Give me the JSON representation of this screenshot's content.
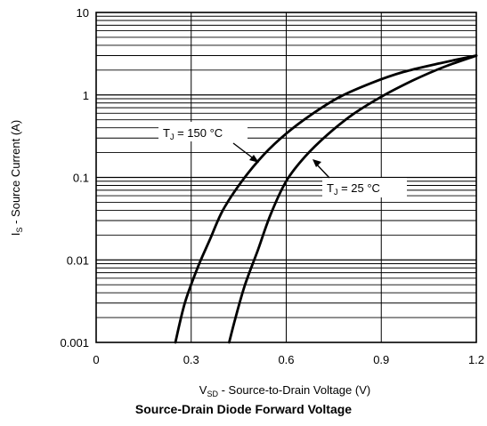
{
  "chart_data": {
    "type": "line",
    "title": "Source-Drain Diode Forward Voltage",
    "xlabel": {
      "main": "V",
      "sub": "SD",
      "rest": " - Source-to-Drain Voltage (V)"
    },
    "ylabel": {
      "main": "I",
      "sub": "S",
      "rest": " - Source Current (A)"
    },
    "x_ticks": [
      "0",
      "0.3",
      "0.6",
      "0.9",
      "1.2"
    ],
    "y_ticks": [
      "0.001",
      "0.01",
      "0.1",
      "1",
      "10"
    ],
    "xlim": [
      0,
      1.2
    ],
    "ylim": [
      0.001,
      10
    ],
    "y_scale": "log",
    "grid": true,
    "series": [
      {
        "name": {
          "main": "T",
          "sub": "J",
          "rest": " = 150 °C"
        },
        "x": [
          0.25,
          0.28,
          0.32,
          0.36,
          0.4,
          0.46,
          0.53,
          0.6,
          0.68,
          0.77,
          0.87,
          0.97,
          1.08,
          1.2
        ],
        "y": [
          0.001,
          0.003,
          0.008,
          0.018,
          0.04,
          0.09,
          0.19,
          0.34,
          0.58,
          0.95,
          1.4,
          1.9,
          2.4,
          3.0
        ]
      },
      {
        "name": {
          "main": "T",
          "sub": "J",
          "rest": " = 25 °C"
        },
        "x": [
          0.42,
          0.44,
          0.47,
          0.51,
          0.55,
          0.6,
          0.66,
          0.73,
          0.81,
          0.9,
          1.0,
          1.1,
          1.2
        ],
        "y": [
          0.001,
          0.002,
          0.005,
          0.013,
          0.035,
          0.09,
          0.18,
          0.33,
          0.58,
          0.95,
          1.5,
          2.2,
          3.0
        ]
      }
    ]
  }
}
